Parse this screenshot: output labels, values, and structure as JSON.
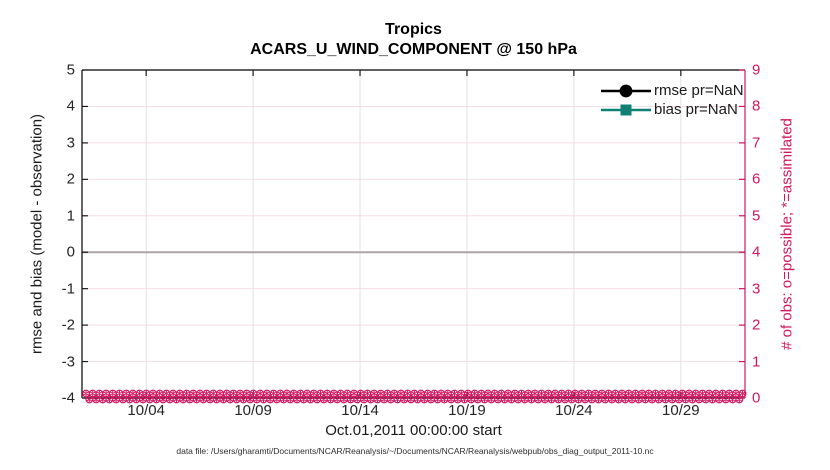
{
  "footer_note": "data file: /Users/gharamti/Documents/NCAR/Reanalysis/~/Documents/NCAR/Reanalysis/webpub/obs_diag_output_2011-10.nc",
  "legend": {
    "items": [
      {
        "label": "rmse pr=NaN",
        "marker": "filled-circle",
        "color": "#000000"
      },
      {
        "label": "bias pr=NaN",
        "marker": "filled-square",
        "color": "#0e8174"
      }
    ]
  },
  "colors": {
    "obs_pink": "#d2165f",
    "grid_pink": "#f6dee8",
    "grid_gray": "#e6dede",
    "zero_line_gray": "#ada5a5",
    "axis_black": "#1a1a1a",
    "tick_label_gray": "#262626",
    "rmse_black": "#000000",
    "bias_teal": "#0e8174"
  },
  "chart_data": {
    "type": "line",
    "title": "Tropics",
    "subtitle": "ACARS_U_WIND_COMPONENT @ 150 hPa",
    "xlabel": "Oct.01,2011 00:00:00 start",
    "x_tick_labels": [
      "10/04",
      "10/09",
      "10/14",
      "10/19",
      "10/24",
      "10/29"
    ],
    "x_tick_days_from_start": [
      3,
      8,
      13,
      18,
      23,
      28
    ],
    "x_span_days": 31,
    "left_axis": {
      "ylabel": "rmse and bias (model - observation)",
      "ylim": [
        -4,
        5
      ],
      "ticks": [
        5,
        4,
        3,
        2,
        1,
        0,
        -1,
        -2,
        -3,
        -4
      ]
    },
    "right_axis": {
      "ylabel": "# of obs: o=possible; *=assimilated",
      "ylim": [
        0,
        9
      ],
      "ticks": [
        9,
        8,
        7,
        6,
        5,
        4,
        3,
        2,
        1,
        0
      ]
    },
    "series": [
      {
        "name": "rmse pr=NaN",
        "axis": "left",
        "marker": "circle",
        "color": "#000000",
        "values": "NaN - no curve plotted"
      },
      {
        "name": "bias pr=NaN",
        "axis": "left",
        "marker": "square",
        "color": "#0e8174",
        "values": "NaN - no curve plotted"
      },
      {
        "name": "# of obs possible (o markers)",
        "axis": "right",
        "marker": "o",
        "color": "#d2165f",
        "constant_value": 0
      },
      {
        "name": "# of obs assimilated (* markers)",
        "axis": "right",
        "marker": "*",
        "color": "#d2165f",
        "constant_value": 0
      }
    ],
    "reference_line": {
      "axis": "left",
      "value": 0,
      "color": "#ada5a5"
    },
    "grid": "on",
    "legend_position": "top-right-inside"
  }
}
